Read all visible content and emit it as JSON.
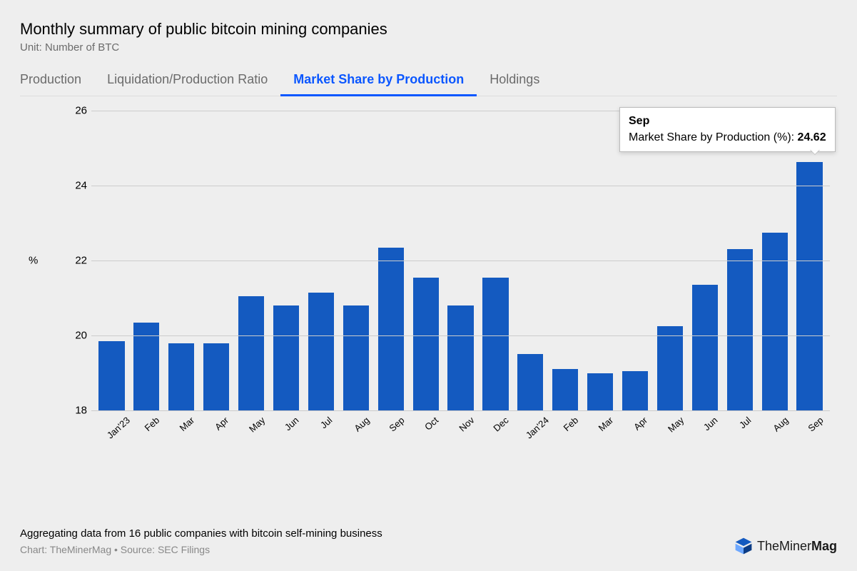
{
  "title": "Monthly summary of public bitcoin mining companies",
  "subtitle": "Unit: Number of BTC",
  "tabs": [
    {
      "label": "Production",
      "active": false
    },
    {
      "label": "Liquidation/Production Ratio",
      "active": false
    },
    {
      "label": "Market Share by Production",
      "active": true
    },
    {
      "label": "Holdings",
      "active": false
    }
  ],
  "chart": {
    "type": "bar",
    "y_unit_label": "%",
    "ylim": [
      18,
      26
    ],
    "yticks": [
      18,
      20,
      22,
      24,
      26
    ],
    "bar_color": "#145ac0",
    "grid_color": "#cccccc",
    "background_color": "#eeeeee",
    "bar_width_ratio": 0.74,
    "label_fontsize": 13,
    "tick_fontsize": 15,
    "categories": [
      "Jan'23",
      "Feb",
      "Mar",
      "Apr",
      "May",
      "Jun",
      "Jul",
      "Aug",
      "Sep",
      "Oct",
      "Nov",
      "Dec",
      "Jan'24",
      "Feb",
      "Mar",
      "Apr",
      "May",
      "Jun",
      "Jul",
      "Aug",
      "Sep"
    ],
    "values": [
      19.85,
      20.35,
      19.8,
      19.8,
      21.05,
      20.8,
      21.15,
      20.8,
      22.35,
      21.55,
      20.8,
      21.55,
      19.5,
      19.1,
      19.0,
      19.05,
      20.25,
      21.35,
      22.3,
      22.75,
      24.62
    ],
    "tooltip": {
      "index": 20,
      "title": "Sep",
      "metric_label": "Market Share by Production (%):",
      "value": "24.62"
    }
  },
  "footnote": "Aggregating data from 16 public companies with bitcoin self-mining business",
  "credits": "Chart: TheMinerMag • Source: SEC Filings",
  "logo": {
    "text_light": "TheMiner",
    "text_bold": "Mag"
  }
}
